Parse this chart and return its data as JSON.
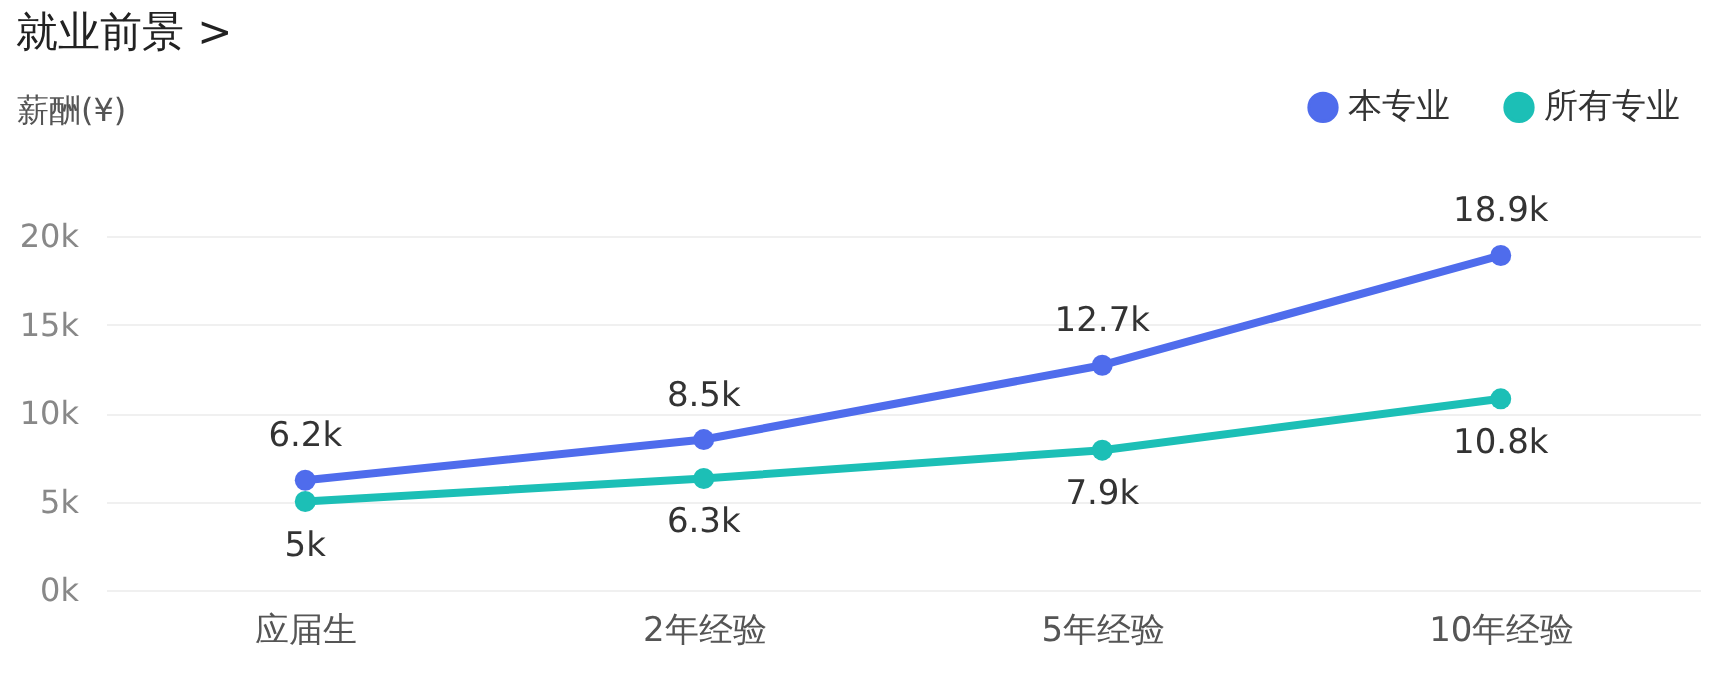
{
  "chart_data": {
    "type": "line",
    "title": "就业前景 >",
    "ylabel": "薪酬(¥)",
    "categories": [
      "应届生",
      "2年经验",
      "5年经验",
      "10年经验"
    ],
    "series": [
      {
        "name": "本专业",
        "color": "#4f6cec",
        "values": [
          6.2,
          8.5,
          12.7,
          18.9
        ],
        "value_labels": [
          "6.2k",
          "8.5k",
          "12.7k",
          "18.9k"
        ]
      },
      {
        "name": "所有专业",
        "color": "#1cbfb6",
        "values": [
          5,
          6.3,
          7.9,
          10.8
        ],
        "value_labels": [
          "5k",
          "6.3k",
          "7.9k",
          "10.8k"
        ]
      }
    ],
    "ylim": [
      0,
      20
    ],
    "yticks": [
      {
        "value": 0,
        "label": "0k"
      },
      {
        "value": 5,
        "label": "5k"
      },
      {
        "value": 10,
        "label": "10k"
      },
      {
        "value": 15,
        "label": "15k"
      },
      {
        "value": 20,
        "label": "20k"
      }
    ],
    "grid": "y",
    "legend": "top right",
    "marker": "circle",
    "line_style": "solid"
  }
}
